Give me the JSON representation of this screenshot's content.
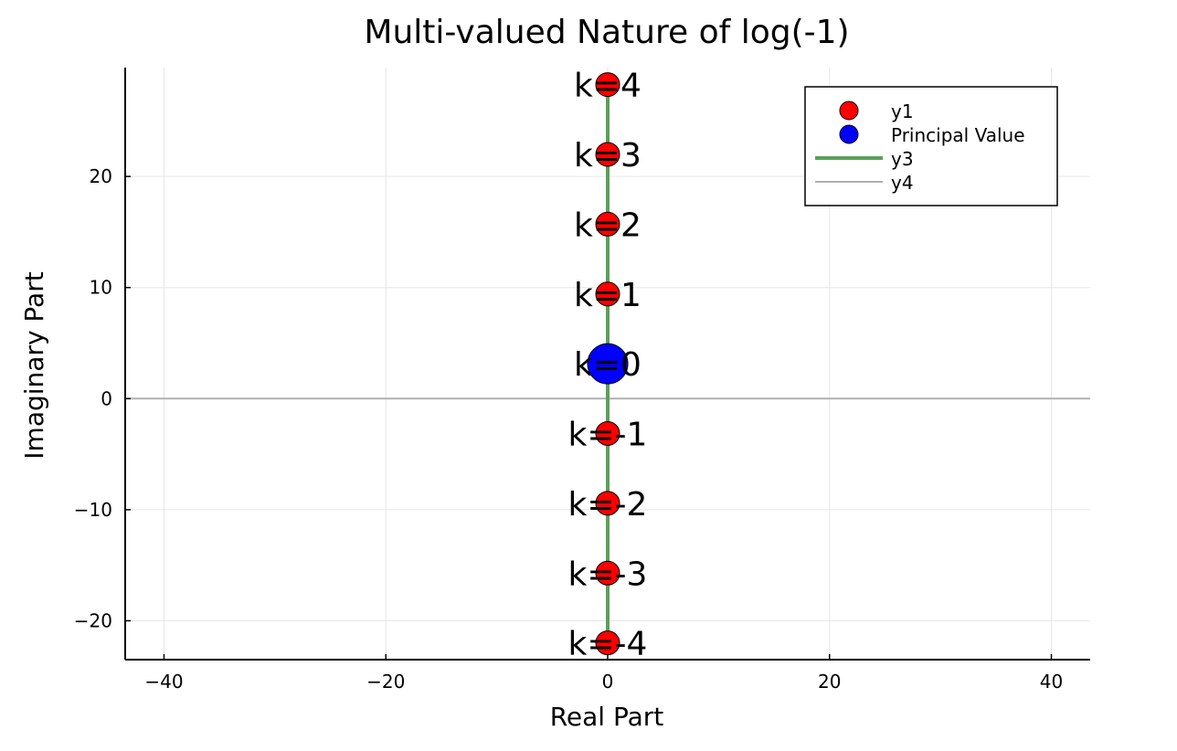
{
  "chart_data": {
    "type": "scatter",
    "title": "Multi-valued Nature of log(-1)",
    "xlabel": "Real Part",
    "ylabel": "Imaginary Part",
    "xlim": [
      -43.5,
      43.5
    ],
    "ylim": [
      -23.5,
      29.8
    ],
    "xticks": [
      -40,
      -20,
      0,
      20,
      40
    ],
    "xtick_labels": [
      "−40",
      "−20",
      "0",
      "20",
      "40"
    ],
    "yticks": [
      -20,
      -10,
      0,
      10,
      20
    ],
    "ytick_labels": [
      "−20",
      "−10",
      "0",
      "10",
      "20"
    ],
    "grid": true,
    "legend_position": "top-right",
    "series": [
      {
        "name": "y1",
        "kind": "scatter",
        "color": "#ff0000",
        "points": [
          {
            "x": 0,
            "y": 28.27,
            "label": "k=4"
          },
          {
            "x": 0,
            "y": 21.99,
            "label": "k=3"
          },
          {
            "x": 0,
            "y": 15.71,
            "label": "k=2"
          },
          {
            "x": 0,
            "y": 9.42,
            "label": "k=1"
          },
          {
            "x": 0,
            "y": -3.14,
            "label": "k=-1"
          },
          {
            "x": 0,
            "y": -9.42,
            "label": "k=-2"
          },
          {
            "x": 0,
            "y": -15.71,
            "label": "k=-3"
          },
          {
            "x": 0,
            "y": -21.99,
            "label": "k=-4"
          }
        ]
      },
      {
        "name": "Principal Value",
        "kind": "scatter",
        "color": "#0000ff",
        "points": [
          {
            "x": 0,
            "y": 3.14,
            "label": "k=0"
          }
        ]
      },
      {
        "name": "y3",
        "kind": "line",
        "color": "#5aa05a",
        "points": [
          {
            "x": 0,
            "y": -21.99
          },
          {
            "x": 0,
            "y": 28.27
          }
        ]
      },
      {
        "name": "y4",
        "kind": "hline",
        "color": "#b0b0b0",
        "y": 0
      }
    ]
  }
}
